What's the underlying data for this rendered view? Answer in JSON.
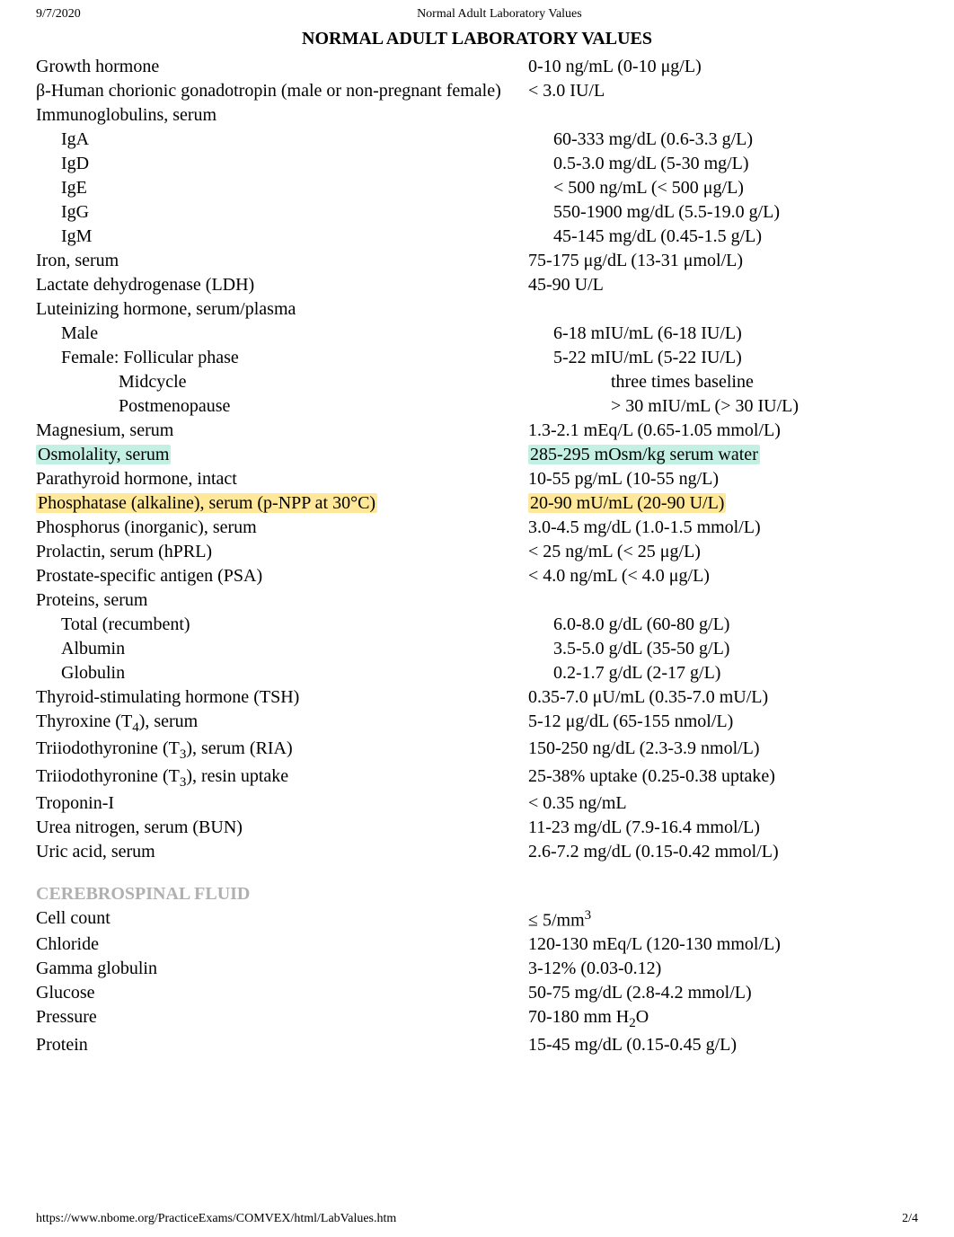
{
  "meta": {
    "date": "9/7/2020",
    "pageTitleSmall": "Normal Adult Laboratory Values",
    "docHeading": "NORMAL ADULT LABORATORY VALUES",
    "footerUrl": "https://www.nbome.org/PracticeExams/COMVEX/html/LabValues.htm",
    "footerPage": "2/4"
  },
  "highlights": {
    "teal_bg": "#c4f0e3",
    "yellow_bg": "#ffe89a"
  },
  "rows": [
    {
      "label": "Growth hormone",
      "value": "0-10 ng/mL (0-10 μg/L)"
    },
    {
      "label": "β-Human chorionic gonadotropin (male or non-pregnant female)",
      "value": "< 3.0 IU/L"
    },
    {
      "label": "Immunoglobulins, serum",
      "value": ""
    },
    {
      "label": "IgA",
      "indent": 1,
      "value": "60-333 mg/dL (0.6-3.3 g/L)"
    },
    {
      "label": "IgD",
      "indent": 1,
      "value": "0.5-3.0 mg/dL (5-30 mg/L)"
    },
    {
      "label": "IgE",
      "indent": 1,
      "value": "< 500 ng/mL (< 500 μg/L)"
    },
    {
      "label": "IgG",
      "indent": 1,
      "value": "550-1900 mg/dL (5.5-19.0 g/L)"
    },
    {
      "label": "IgM",
      "indent": 1,
      "value": "45-145 mg/dL (0.45-1.5 g/L)"
    },
    {
      "label": "Iron, serum",
      "value": "75-175 μg/dL (13-31 μmol/L)"
    },
    {
      "label": "Lactate dehydrogenase (LDH)",
      "value": "45-90 U/L"
    },
    {
      "label": "Luteinizing hormone, serum/plasma",
      "value": ""
    },
    {
      "label": "Male",
      "indent": 1,
      "value": "6-18 mIU/mL (6-18 IU/L)"
    },
    {
      "label": "Female: Follicular phase",
      "indent": 1,
      "value": "5-22 mIU/mL (5-22 IU/L)"
    },
    {
      "label": "Midcycle",
      "indent": 2,
      "value": "three times baseline"
    },
    {
      "label": "Postmenopause",
      "indent": 2,
      "value": "> 30 mIU/mL (> 30 IU/L)"
    },
    {
      "label": "Magnesium, serum",
      "value": "1.3-2.1 mEq/L (0.65-1.05 mmol/L)"
    },
    {
      "label": "Osmolality, serum",
      "value": "285-295 mOsm/kg serum water",
      "hlLabel": "teal",
      "hlValue": "teal"
    },
    {
      "label": "Parathyroid hormone, intact",
      "value": "10-55 pg/mL (10-55 ng/L)"
    },
    {
      "label": "Phosphatase (alkaline), serum (p-NPP at 30°C)",
      "value": "20-90 mU/mL (20-90 U/L)",
      "hlLabel": "yellow",
      "hlValue": "yellow"
    },
    {
      "label": "Phosphorus (inorganic), serum",
      "value": "3.0-4.5 mg/dL (1.0-1.5 mmol/L)"
    },
    {
      "label": "Prolactin, serum (hPRL)",
      "value": "< 25 ng/mL (< 25 μg/L)"
    },
    {
      "label": "Prostate-specific antigen (PSA)",
      "value": "< 4.0 ng/mL (< 4.0 μg/L)"
    },
    {
      "label": "Proteins, serum",
      "value": ""
    },
    {
      "label": "Total (recumbent)",
      "indent": 1,
      "value": "6.0-8.0 g/dL (60-80 g/L)"
    },
    {
      "label": "Albumin",
      "indent": 1,
      "value": "3.5-5.0 g/dL (35-50 g/L)"
    },
    {
      "label": "Globulin",
      "indent": 1,
      "value": "0.2-1.7 g/dL (2-17 g/L)"
    },
    {
      "label": "Thyroid-stimulating hormone (TSH)",
      "value": "0.35-7.0 μU/mL (0.35-7.0 mU/L)"
    },
    {
      "label": "Thyroxine (T<sub>4</sub>), serum",
      "value": "5-12 μg/dL (65-155 nmol/L)",
      "html": true
    },
    {
      "label": "Triiodothyronine (T<sub>3</sub>), serum (RIA)",
      "value": "150-250 ng/dL (2.3-3.9 nmol/L)",
      "html": true
    },
    {
      "label": "Triiodothyronine (T<sub>3</sub>), resin uptake",
      "value": "25-38% uptake (0.25-0.38 uptake)",
      "html": true
    },
    {
      "label": "Troponin-I",
      "value": "< 0.35 ng/mL"
    },
    {
      "label": "Urea nitrogen, serum (BUN)",
      "value": "11-23 mg/dL (7.9-16.4 mmol/L)"
    },
    {
      "label": "Uric acid, serum",
      "value": "2.6-7.2 mg/dL (0.15-0.42 mmol/L)"
    }
  ],
  "csfHeading": "CEREBROSPINAL FLUID",
  "csfRows": [
    {
      "label": "Cell count",
      "value": "≤ 5/mm<sup>3</sup>",
      "html": true
    },
    {
      "label": "Chloride",
      "value": "120-130 mEq/L (120-130 mmol/L)"
    },
    {
      "label": "Gamma globulin",
      "value": "3-12% (0.03-0.12)"
    },
    {
      "label": "Glucose",
      "value": "50-75 mg/dL (2.8-4.2 mmol/L)"
    },
    {
      "label": "Pressure",
      "value": "70-180 mm H<sub>2</sub>O",
      "html": true
    },
    {
      "label": "Protein",
      "value": "15-45 mg/dL (0.15-0.45 g/L)"
    }
  ]
}
